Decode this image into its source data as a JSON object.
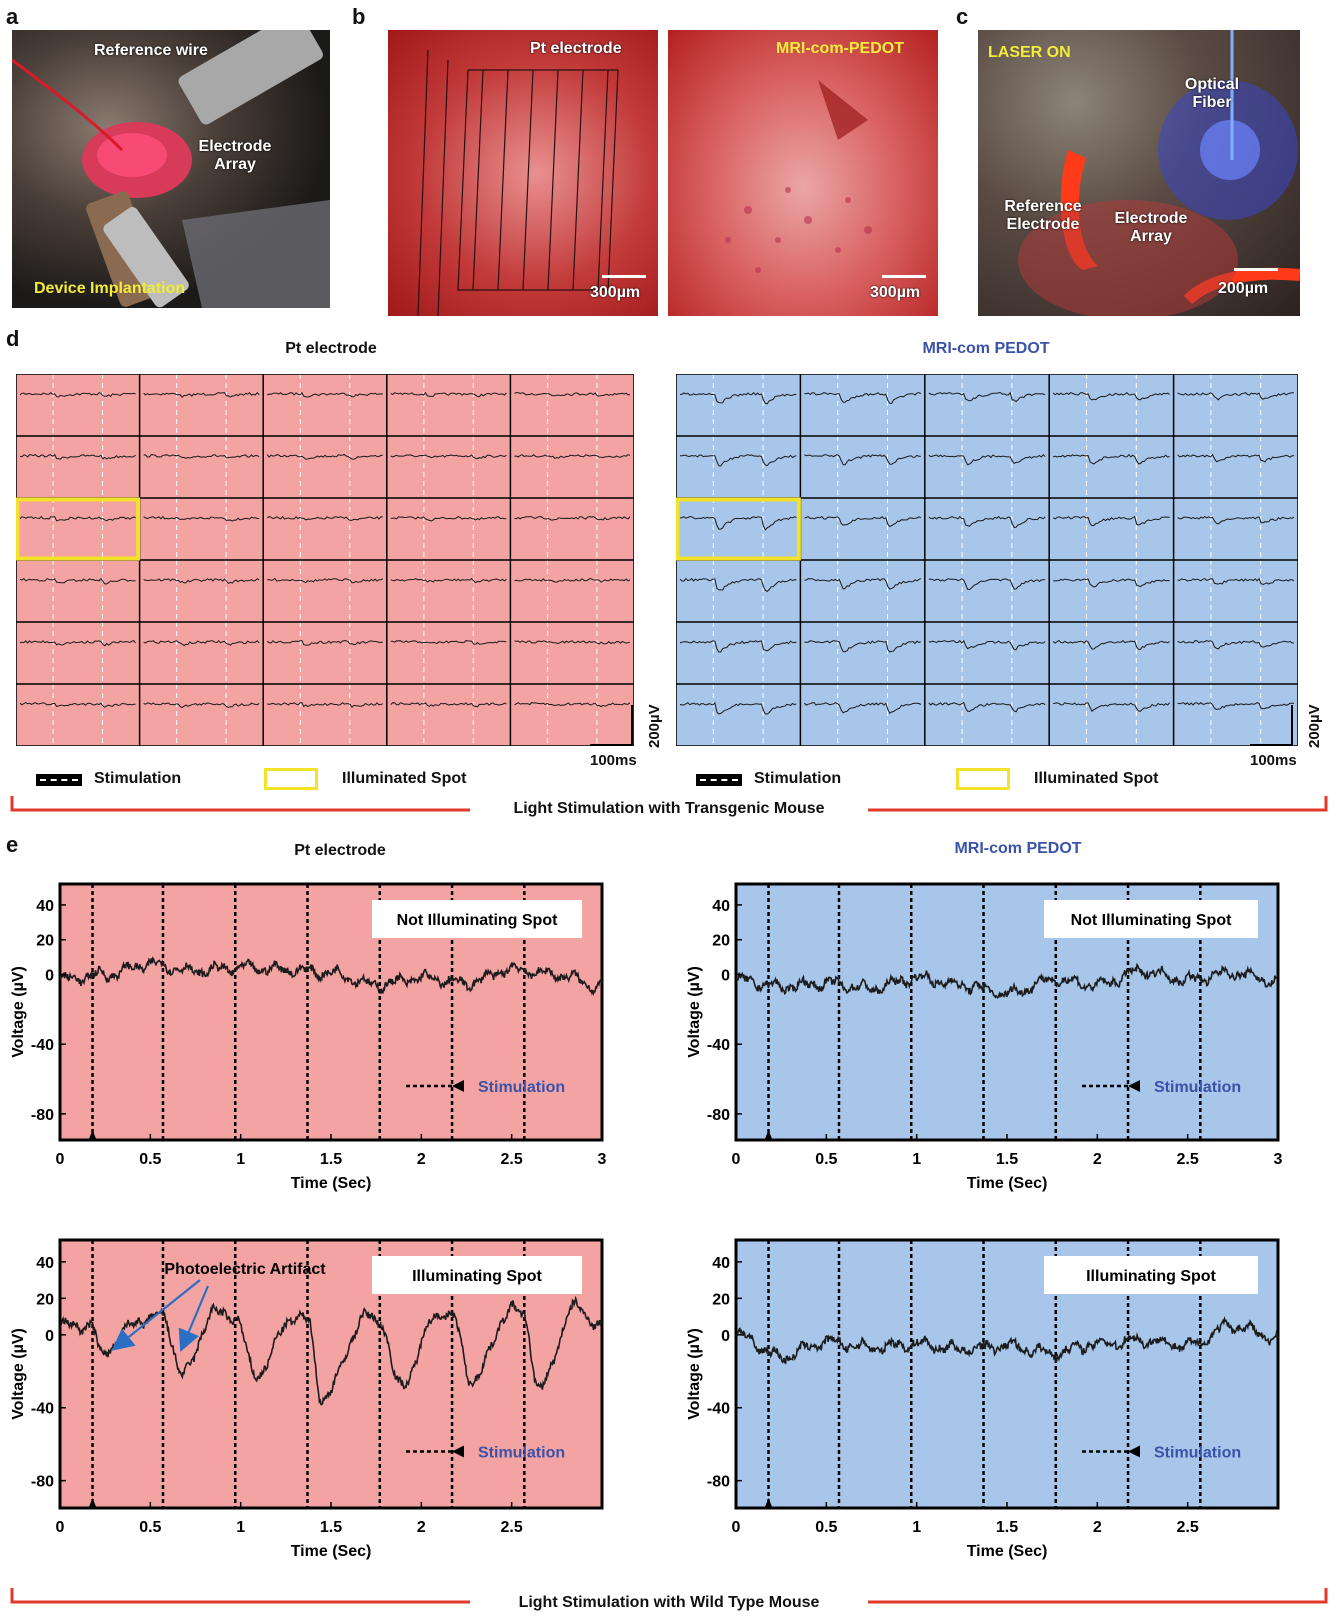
{
  "panel_labels": [
    "a",
    "b",
    "c",
    "d",
    "e"
  ],
  "a": {
    "reference_wire": "Reference wire",
    "electrode_array": "Electrode Array",
    "device_implantation": "Device Implantation"
  },
  "b": {
    "left_label": "Pt electrode",
    "right_label": "MRI-com-PEDOT",
    "scale_left": "300µm",
    "scale_right": "300µm"
  },
  "c": {
    "laser_on": "LASER ON",
    "optical_fiber": "Optical Fiber",
    "reference_electrode": "Reference Electrode",
    "electrode_array": "Electrode Array",
    "scale": "200µm"
  },
  "d": {
    "left_title": "Pt electrode",
    "right_title": "MRI-com PEDOT",
    "stimulation": "Stimulation",
    "illuminated_spot": "Illuminated Spot",
    "scale_v": "200µV",
    "scale_t": "100ms",
    "bracket_label": "Light Stimulation with Transgenic Mouse",
    "rows": 6,
    "cols": 5,
    "highlight_row": 3,
    "highlight_col": 1,
    "colors": {
      "pt_bg": "#f4a3a3",
      "pedot_bg": "#a7c6ea",
      "highlight": "#f2e22a",
      "bracket": "#e23a2a"
    }
  },
  "e": {
    "left_title": "Pt electrode",
    "right_title": "MRI-com PEDOT",
    "bracket_label": "Light Stimulation with Wild Type Mouse",
    "photoelectric_artifact": "Photoelectric Artifact",
    "charts": [
      {
        "id": "pt-not",
        "box_label": "Not Illuminating Spot",
        "stim_label": "Stimulation",
        "xlabel": "Time (Sec)",
        "ylabel": "Voltage (µV)",
        "xticks": [
          "0",
          "0.5",
          "1",
          "1.5",
          "2",
          "2.5",
          "3"
        ],
        "yticks": [
          "40",
          "20",
          "0",
          "-40",
          "-80"
        ]
      },
      {
        "id": "pedot-not",
        "box_label": "Not Illuminating Spot",
        "stim_label": "Stimulation",
        "xlabel": "Time (Sec)",
        "ylabel": "Voltage (µV)",
        "xticks": [
          "0",
          "0.5",
          "1",
          "1.5",
          "2",
          "2.5",
          "3"
        ],
        "yticks": [
          "40",
          "20",
          "0",
          "-40",
          "-80"
        ]
      },
      {
        "id": "pt-ill",
        "box_label": "Illuminating Spot",
        "stim_label": "Stimulation",
        "xlabel": "Time (Sec)",
        "ylabel": "Voltage (µV)",
        "xticks": [
          "0",
          "0.5",
          "1",
          "1.5",
          "2",
          "2.5"
        ],
        "yticks": [
          "40",
          "20",
          "0",
          "-40",
          "-80"
        ]
      },
      {
        "id": "pedot-ill",
        "box_label": "Illuminating Spot",
        "stim_label": "Stimulation",
        "xlabel": "Time (Sec)",
        "ylabel": "Voltage (µV)",
        "xticks": [
          "0",
          "0.5",
          "1",
          "1.5",
          "2",
          "2.5"
        ],
        "yticks": [
          "40",
          "20",
          "0",
          "-40",
          "-80"
        ]
      }
    ]
  },
  "chart_data": [
    {
      "type": "line",
      "title": "Pt electrode",
      "xlabel": "Time (Sec)",
      "ylabel": "Voltage (µV)",
      "xlim": [
        0,
        3
      ],
      "ylim": [
        -95,
        52
      ],
      "stimulation_times": [
        0.18,
        0.57,
        0.97,
        1.37,
        1.77,
        2.17,
        2.57
      ],
      "annotation": "Not Illuminating Spot",
      "x": [
        0,
        0.25,
        0.5,
        0.75,
        1.0,
        1.25,
        1.5,
        1.75,
        2.0,
        2.25,
        2.5,
        2.75,
        3.0
      ],
      "y": [
        -3,
        0,
        6,
        2,
        4,
        3,
        1,
        -6,
        -2,
        -5,
        3,
        0,
        -7
      ]
    },
    {
      "type": "line",
      "title": "MRI-com PEDOT",
      "xlabel": "Time (Sec)",
      "ylabel": "Voltage (µV)",
      "xlim": [
        0,
        3
      ],
      "ylim": [
        -95,
        52
      ],
      "stimulation_times": [
        0.18,
        0.57,
        0.97,
        1.37,
        1.77,
        2.17,
        2.57
      ],
      "annotation": "Not Illuminating Spot",
      "x": [
        0,
        0.25,
        0.5,
        0.75,
        1.0,
        1.25,
        1.5,
        1.75,
        2.0,
        2.25,
        2.5,
        2.75,
        3.0
      ],
      "y": [
        -3,
        -7,
        -5,
        -8,
        -2,
        -6,
        -11,
        -3,
        -6,
        2,
        -3,
        1,
        -4
      ]
    },
    {
      "type": "line",
      "title": "Pt electrode",
      "xlabel": "Time (Sec)",
      "ylabel": "Voltage (µV)",
      "xlim": [
        0,
        3
      ],
      "ylim": [
        -95,
        52
      ],
      "stimulation_times": [
        0.18,
        0.57,
        0.97,
        1.37,
        1.77,
        2.17,
        2.57
      ],
      "annotation": "Illuminating Spot",
      "x": [
        0,
        0.18,
        0.22,
        0.45,
        0.57,
        0.68,
        0.85,
        0.97,
        1.08,
        1.3,
        1.37,
        1.45,
        1.7,
        1.77,
        1.88,
        2.1,
        2.17,
        2.28,
        2.5,
        2.57,
        2.65,
        2.85,
        3.0
      ],
      "y": [
        5,
        5,
        -10,
        8,
        10,
        -22,
        12,
        10,
        -22,
        10,
        8,
        -35,
        10,
        8,
        -28,
        12,
        10,
        -25,
        14,
        10,
        -30,
        15,
        5
      ]
    },
    {
      "type": "line",
      "title": "MRI-com PEDOT",
      "xlabel": "Time (Sec)",
      "ylabel": "Voltage (µV)",
      "xlim": [
        0,
        3
      ],
      "ylim": [
        -95,
        52
      ],
      "stimulation_times": [
        0.18,
        0.57,
        0.97,
        1.37,
        1.77,
        2.17,
        2.57
      ],
      "annotation": "Illuminating Spot",
      "x": [
        0,
        0.25,
        0.5,
        0.75,
        1.0,
        1.25,
        1.5,
        1.75,
        2.0,
        2.25,
        2.5,
        2.75,
        3.0
      ],
      "y": [
        0,
        -12,
        -4,
        -7,
        -5,
        -8,
        -6,
        -10,
        -5,
        -3,
        -6,
        5,
        -2
      ]
    }
  ]
}
